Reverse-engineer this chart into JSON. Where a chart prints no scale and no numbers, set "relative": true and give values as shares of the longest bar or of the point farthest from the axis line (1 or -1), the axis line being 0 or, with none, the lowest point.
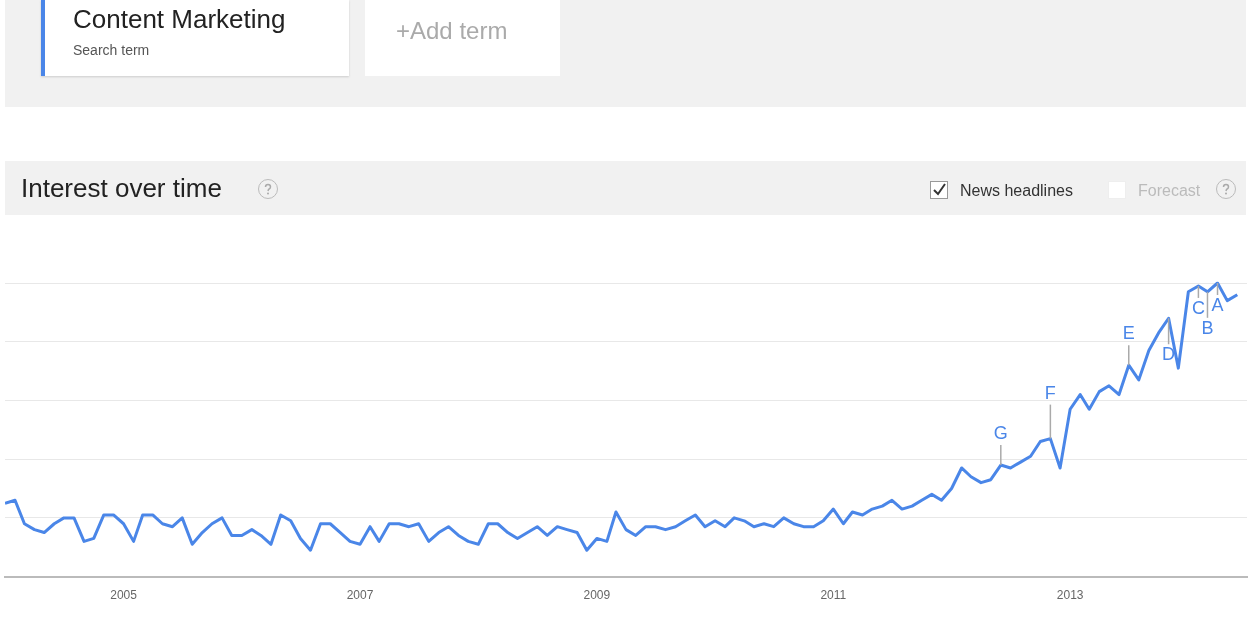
{
  "chart_data": {
    "type": "line",
    "title": "Interest over time",
    "relative": true,
    "grid": "y",
    "legend": "top left",
    "marker": "none",
    "line_style": "solid",
    "x": [
      "2004-01",
      "2004-02",
      "2004-03",
      "2004-04",
      "2004-05",
      "2004-06",
      "2004-07",
      "2004-08",
      "2004-09",
      "2004-10",
      "2004-11",
      "2004-12",
      "2005-01",
      "2005-02",
      "2005-03",
      "2005-04",
      "2005-05",
      "2005-06",
      "2005-07",
      "2005-08",
      "2005-09",
      "2005-10",
      "2005-11",
      "2005-12",
      "2006-01",
      "2006-02",
      "2006-03",
      "2006-04",
      "2006-05",
      "2006-06",
      "2006-07",
      "2006-08",
      "2006-09",
      "2006-10",
      "2006-11",
      "2006-12",
      "2007-01",
      "2007-02",
      "2007-03",
      "2007-04",
      "2007-05",
      "2007-06",
      "2007-07",
      "2007-08",
      "2007-09",
      "2007-10",
      "2007-11",
      "2007-12",
      "2008-01",
      "2008-02",
      "2008-03",
      "2008-04",
      "2008-05",
      "2008-06",
      "2008-07",
      "2008-08",
      "2008-09",
      "2008-10",
      "2008-11",
      "2008-12",
      "2009-01",
      "2009-02",
      "2009-03",
      "2009-04",
      "2009-05",
      "2009-06",
      "2009-07",
      "2009-08",
      "2009-09",
      "2009-10",
      "2009-11",
      "2009-12",
      "2010-01",
      "2010-02",
      "2010-03",
      "2010-04",
      "2010-05",
      "2010-06",
      "2010-07",
      "2010-08",
      "2010-09",
      "2010-10",
      "2010-11",
      "2010-12",
      "2011-01",
      "2011-02",
      "2011-03",
      "2011-04",
      "2011-05",
      "2011-06",
      "2011-07",
      "2011-08",
      "2011-09",
      "2011-10",
      "2011-11",
      "2011-12",
      "2012-01",
      "2012-02",
      "2012-03",
      "2012-04",
      "2012-05",
      "2012-06",
      "2012-07",
      "2012-08",
      "2012-09",
      "2012-10",
      "2012-11",
      "2012-12",
      "2013-01",
      "2013-02",
      "2013-03",
      "2013-04",
      "2013-05",
      "2013-06",
      "2013-07",
      "2013-08",
      "2013-09",
      "2013-10",
      "2013-11",
      "2013-12",
      "2014-01",
      "2014-02",
      "2014-03",
      "2014-04",
      "2014-05",
      "2014-06"
    ],
    "xlim": [
      "2004-01",
      "2014-07"
    ],
    "xticks": [
      {
        "value": "2005-01",
        "label": "2005"
      },
      {
        "value": "2007-01",
        "label": "2007"
      },
      {
        "value": "2009-01",
        "label": "2009"
      },
      {
        "value": "2011-01",
        "label": "2011"
      },
      {
        "value": "2013-01",
        "label": "2013"
      }
    ],
    "series": [
      {
        "name": "Content Marketing",
        "color": "#4a86e8",
        "values": [
          0.25,
          0.26,
          0.18,
          0.16,
          0.15,
          0.18,
          0.2,
          0.2,
          0.12,
          0.13,
          0.21,
          0.21,
          0.18,
          0.12,
          0.21,
          0.21,
          0.18,
          0.17,
          0.2,
          0.11,
          0.15,
          0.18,
          0.2,
          0.14,
          0.14,
          0.16,
          0.14,
          0.11,
          0.21,
          0.19,
          0.13,
          0.09,
          0.18,
          0.18,
          0.15,
          0.12,
          0.11,
          0.17,
          0.12,
          0.18,
          0.18,
          0.17,
          0.18,
          0.12,
          0.15,
          0.17,
          0.14,
          0.12,
          0.11,
          0.18,
          0.18,
          0.15,
          0.13,
          0.15,
          0.17,
          0.14,
          0.17,
          0.16,
          0.15,
          0.09,
          0.13,
          0.12,
          0.22,
          0.16,
          0.14,
          0.17,
          0.17,
          0.16,
          0.17,
          0.19,
          0.21,
          0.17,
          0.19,
          0.17,
          0.2,
          0.19,
          0.17,
          0.18,
          0.17,
          0.2,
          0.18,
          0.17,
          0.17,
          0.19,
          0.23,
          0.18,
          0.22,
          0.21,
          0.23,
          0.24,
          0.26,
          0.23,
          0.24,
          0.26,
          0.28,
          0.26,
          0.3,
          0.37,
          0.34,
          0.32,
          0.33,
          0.38,
          0.37,
          0.39,
          0.41,
          0.46,
          0.47,
          0.37,
          0.57,
          0.62,
          0.57,
          0.63,
          0.65,
          0.62,
          0.72,
          0.67,
          0.77,
          0.83,
          0.88,
          0.71,
          0.97,
          0.99,
          0.97,
          1,
          0.94,
          0.96
        ]
      }
    ],
    "annotations": [
      "Search term",
      "+Add term",
      "News headlines",
      "Forecast",
      {
        "text": "G",
        "x": "2012-06",
        "y": 0.38
      },
      {
        "text": "F",
        "x": "2012-11",
        "y": 0.47
      },
      {
        "text": "E",
        "x": "2013-07",
        "y": 0.72
      },
      {
        "text": "D",
        "x": "2013-11",
        "y": 0.88
      },
      {
        "text": "C",
        "x": "2014-02",
        "y": 0.99
      },
      {
        "text": "B",
        "x": "2014-03",
        "y": 0.97
      },
      {
        "text": "A",
        "x": "2014-04",
        "y": 1
      }
    ]
  }
}
